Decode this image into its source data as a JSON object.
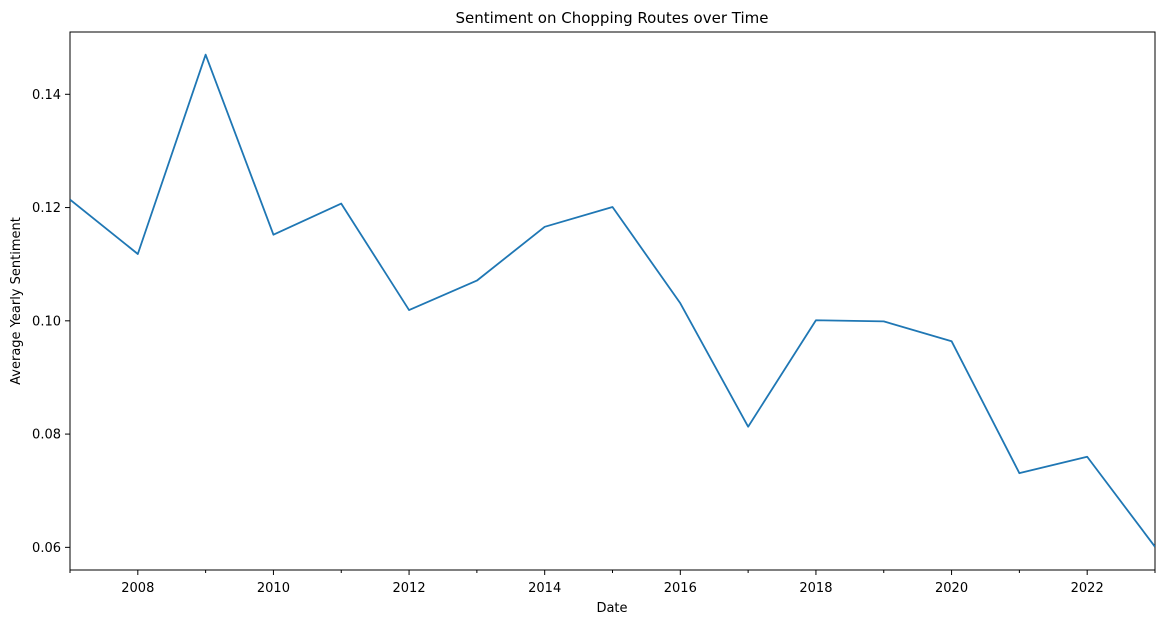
{
  "chart_data": {
    "type": "line",
    "title": "Sentiment on Chopping Routes over Time",
    "xlabel": "Date",
    "ylabel": "Average Yearly Sentiment",
    "xlim": [
      2007,
      2023
    ],
    "ylim": [
      0.056,
      0.151
    ],
    "x_major_ticks": [
      2008,
      2010,
      2012,
      2014,
      2016,
      2018,
      2020,
      2022
    ],
    "x_minor_ticks": [
      2007,
      2009,
      2011,
      2013,
      2015,
      2017,
      2019,
      2021,
      2023
    ],
    "y_ticks": [
      0.06,
      0.08,
      0.1,
      0.12,
      0.14
    ],
    "y_tick_labels": [
      "0.06",
      "0.08",
      "0.10",
      "0.12",
      "0.14"
    ],
    "grid": false,
    "legend": "none",
    "series": [
      {
        "color": "#1f77b4",
        "x": [
          2007,
          2008,
          2009,
          2010,
          2011,
          2012,
          2013,
          2014,
          2015,
          2016,
          2017,
          2018,
          2019,
          2020,
          2021,
          2022,
          2023
        ],
        "values": [
          0.1214,
          0.1118,
          0.147,
          0.1152,
          0.1207,
          0.1019,
          0.1071,
          0.1166,
          0.1201,
          0.1031,
          0.0813,
          0.1001,
          0.0999,
          0.0964,
          0.0731,
          0.076,
          0.0601
        ]
      }
    ]
  }
}
